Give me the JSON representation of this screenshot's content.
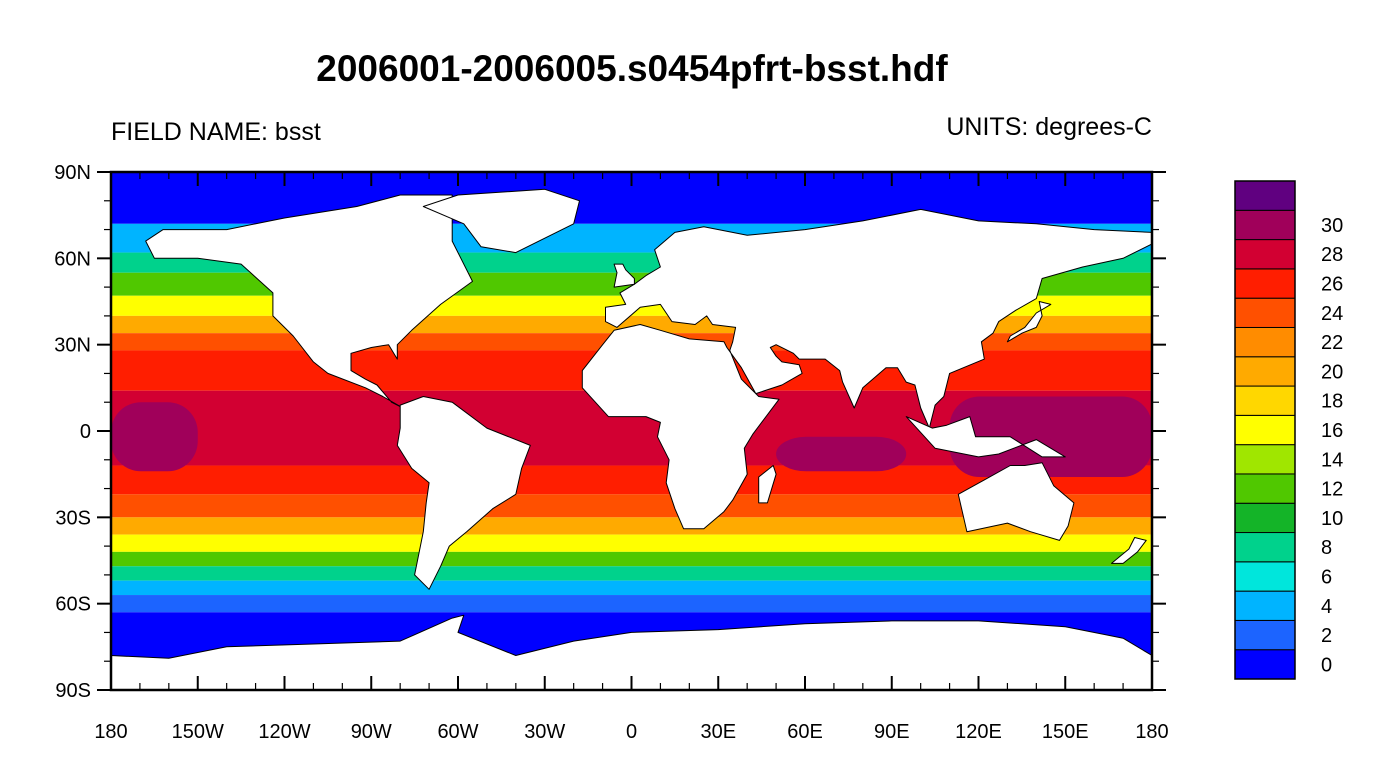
{
  "title": "2006001-2006005.s0454pfrt-bsst.hdf",
  "field_label": "FIELD NAME: bsst",
  "units_label": "UNITS: degrees-C",
  "colors": {
    "land": "#ffffff",
    "coastline": "#000000",
    "frame": "#000000"
  },
  "map": {
    "projection": "cylindrical-equidistant",
    "lon_range": [
      -180,
      180
    ],
    "lat_range": [
      -90,
      90
    ],
    "x_ticks": [
      "180",
      "150W",
      "120W",
      "90W",
      "60W",
      "30W",
      "0",
      "30E",
      "60E",
      "90E",
      "120E",
      "150E",
      "180"
    ],
    "y_ticks": [
      "90N",
      "60N",
      "30N",
      "0",
      "30S",
      "60S",
      "90S"
    ],
    "bands": [
      {
        "lat": [
          90,
          72
        ],
        "value": 0
      },
      {
        "lat": [
          72,
          62
        ],
        "value": 4
      },
      {
        "lat": [
          62,
          55
        ],
        "value": 8
      },
      {
        "lat": [
          55,
          47
        ],
        "value": 12
      },
      {
        "lat": [
          47,
          40
        ],
        "value": 16
      },
      {
        "lat": [
          40,
          34
        ],
        "value": 20
      },
      {
        "lat": [
          34,
          28
        ],
        "value": 24
      },
      {
        "lat": [
          28,
          14
        ],
        "value": 26
      },
      {
        "lat": [
          14,
          -12
        ],
        "value": 28
      },
      {
        "lat": [
          -12,
          -22
        ],
        "value": 26
      },
      {
        "lat": [
          -22,
          -30
        ],
        "value": 24
      },
      {
        "lat": [
          -30,
          -36
        ],
        "value": 20
      },
      {
        "lat": [
          -36,
          -42
        ],
        "value": 16
      },
      {
        "lat": [
          -42,
          -47
        ],
        "value": 12
      },
      {
        "lat": [
          -47,
          -52
        ],
        "value": 8
      },
      {
        "lat": [
          -52,
          -57
        ],
        "value": 4
      },
      {
        "lat": [
          -57,
          -63
        ],
        "value": 2
      },
      {
        "lat": [
          -63,
          -90
        ],
        "value": 0
      }
    ],
    "warm_pool": [
      {
        "lon": [
          110,
          180
        ],
        "lat": [
          12,
          -16
        ],
        "value": 30
      },
      {
        "lon": [
          -180,
          -150
        ],
        "lat": [
          10,
          -14
        ],
        "value": 30
      },
      {
        "lon": [
          50,
          95
        ],
        "lat": [
          -2,
          -14
        ],
        "value": 30
      }
    ]
  },
  "colorbar": {
    "levels": [
      {
        "label": "0",
        "color": "#0000ff"
      },
      {
        "label": "2",
        "color": "#1c64ff"
      },
      {
        "label": "4",
        "color": "#00b4ff"
      },
      {
        "label": "6",
        "color": "#00e6dc"
      },
      {
        "label": "8",
        "color": "#00d28c"
      },
      {
        "label": "10",
        "color": "#14b428"
      },
      {
        "label": "12",
        "color": "#50c800"
      },
      {
        "label": "14",
        "color": "#a0e600"
      },
      {
        "label": "16",
        "color": "#ffff00"
      },
      {
        "label": "18",
        "color": "#ffd700"
      },
      {
        "label": "20",
        "color": "#ffaa00"
      },
      {
        "label": "22",
        "color": "#ff8c00"
      },
      {
        "label": "24",
        "color": "#ff5000"
      },
      {
        "label": "26",
        "color": "#ff1e00"
      },
      {
        "label": "28",
        "color": "#d20032"
      },
      {
        "label": "30",
        "color": "#a0005a"
      },
      {
        "label": "",
        "color": "#600080"
      }
    ]
  }
}
